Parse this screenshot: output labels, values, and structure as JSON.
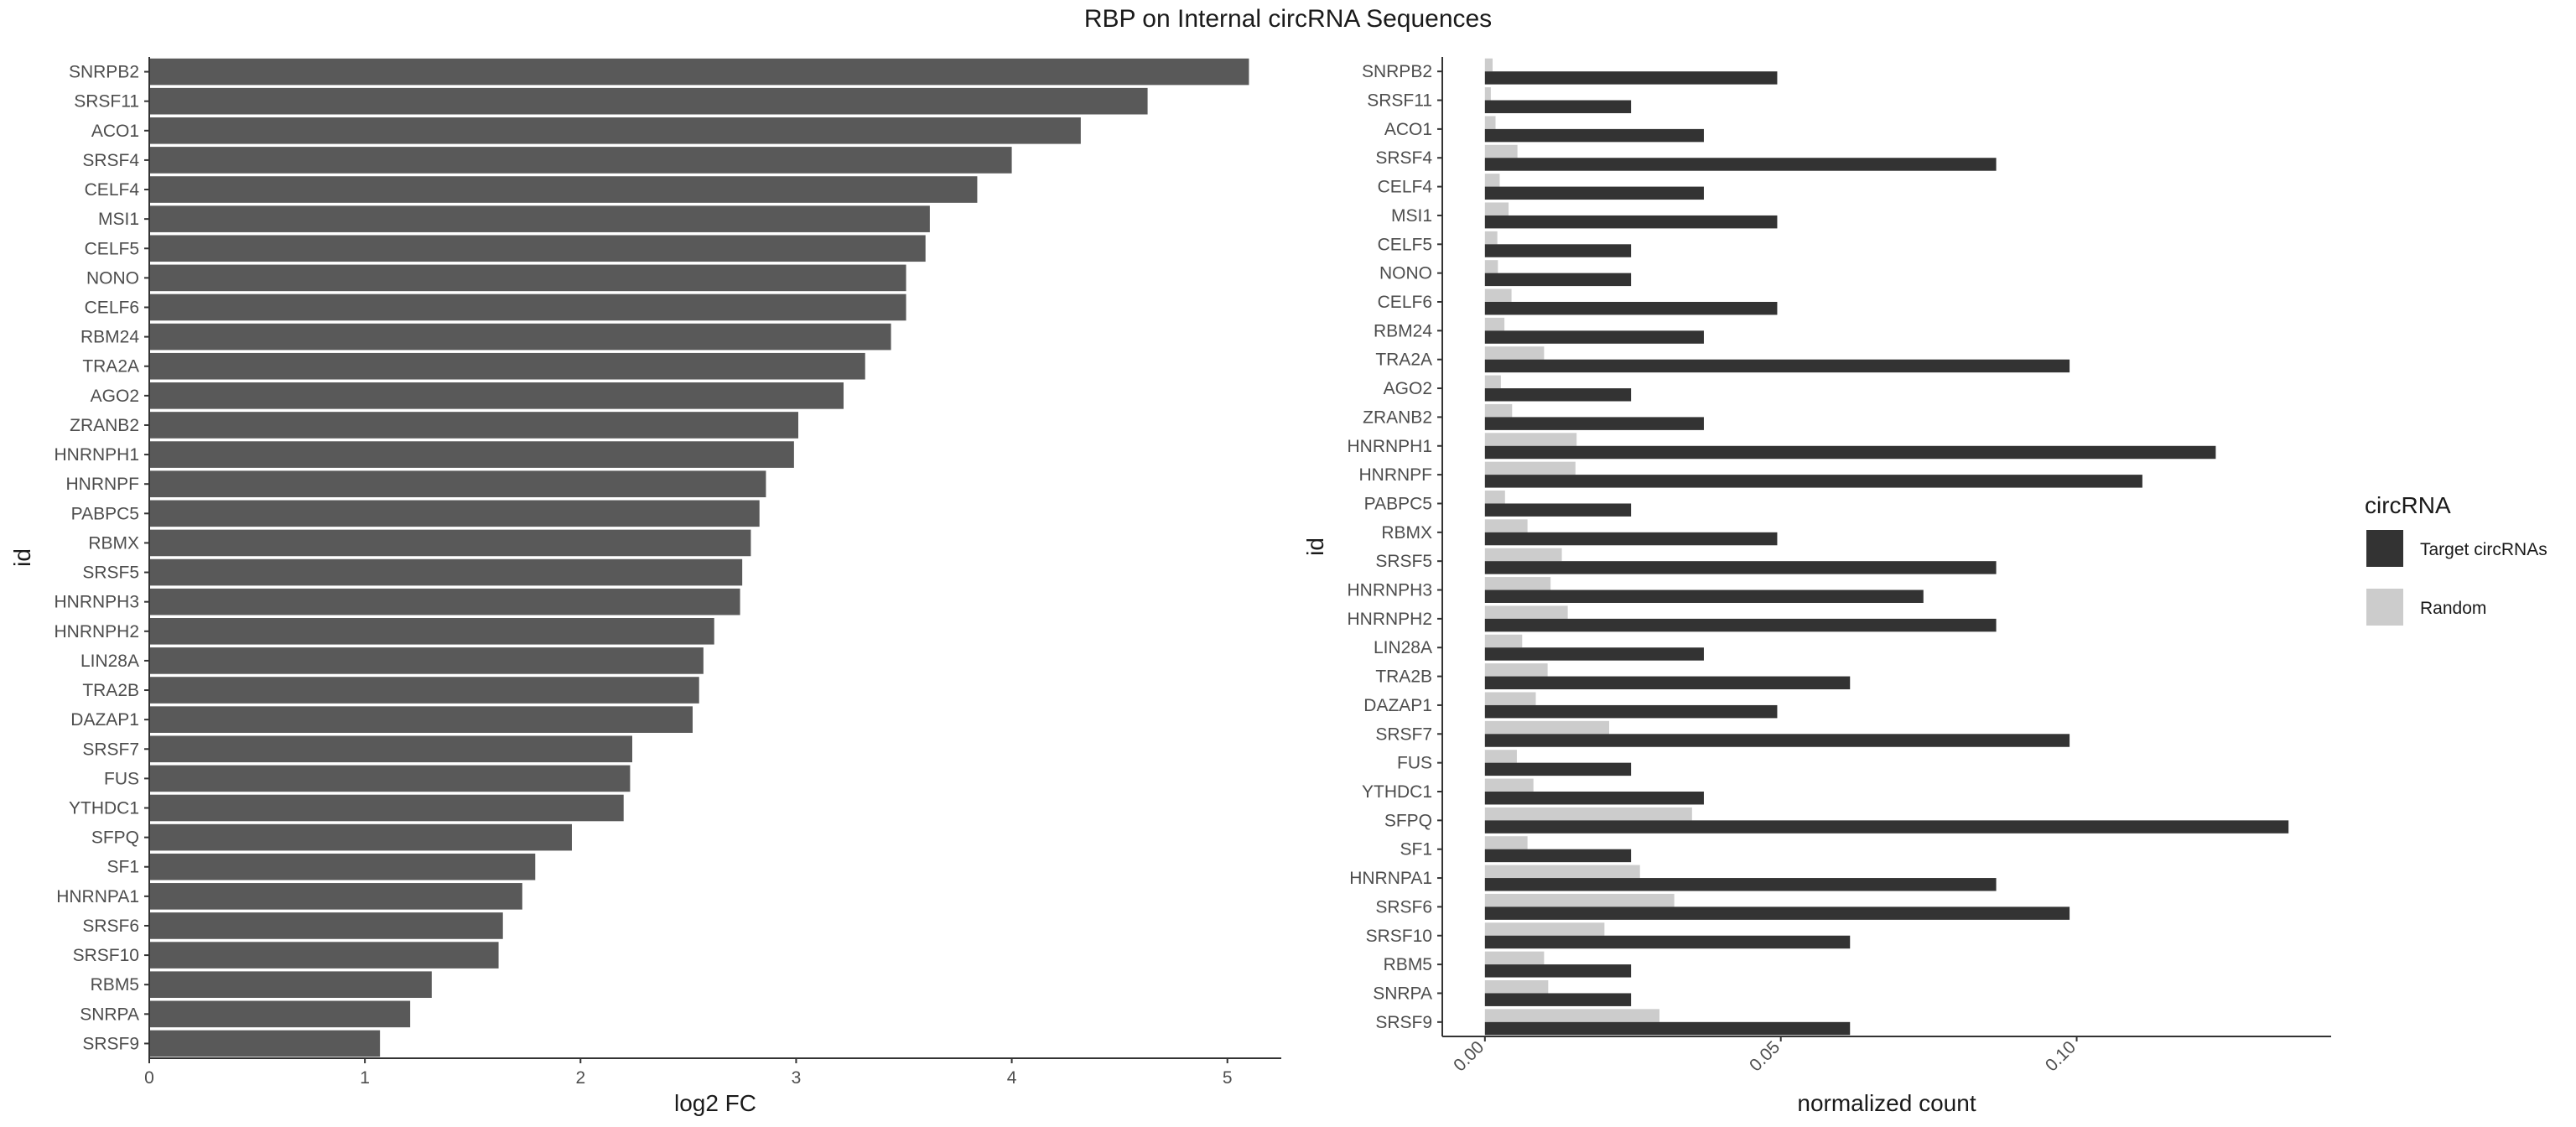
{
  "figure_title": "RBP on Internal circRNA Sequences",
  "colors": {
    "fc_bar": "#595959",
    "target": "#333333",
    "random": "#cccccc",
    "axis": "#333333",
    "tick_text": "#4d4d4d"
  },
  "chart_data": [
    {
      "type": "bar",
      "orientation": "horizontal",
      "xlabel": "log2 FC",
      "ylabel": "id",
      "xlim": [
        0,
        5.25
      ],
      "xticks": [
        0,
        1,
        2,
        3,
        4,
        5
      ],
      "categories": [
        "SNRPB2",
        "SRSF11",
        "ACO1",
        "SRSF4",
        "CELF4",
        "MSI1",
        "CELF5",
        "NONO",
        "CELF6",
        "RBM24",
        "TRA2A",
        "AGO2",
        "ZRANB2",
        "HNRNPH1",
        "HNRNPF",
        "PABPC5",
        "RBMX",
        "SRSF5",
        "HNRNPH3",
        "HNRNPH2",
        "LIN28A",
        "TRA2B",
        "DAZAP1",
        "SRSF7",
        "FUS",
        "YTHDC1",
        "SFPQ",
        "SF1",
        "HNRNPA1",
        "SRSF6",
        "SRSF10",
        "RBM5",
        "SNRPA",
        "SRSF9"
      ],
      "values": [
        5.1,
        4.63,
        4.32,
        4.0,
        3.84,
        3.62,
        3.6,
        3.51,
        3.51,
        3.44,
        3.32,
        3.22,
        3.01,
        2.99,
        2.86,
        2.83,
        2.79,
        2.75,
        2.74,
        2.62,
        2.57,
        2.55,
        2.52,
        2.24,
        2.23,
        2.2,
        1.96,
        1.79,
        1.73,
        1.64,
        1.62,
        1.31,
        1.21,
        1.07
      ]
    },
    {
      "type": "bar",
      "orientation": "horizontal",
      "grouped": true,
      "xlabel": "normalized count",
      "ylabel": "id",
      "xlim": [
        -0.0072,
        0.143
      ],
      "xticks": [
        0.0,
        0.05,
        0.1
      ],
      "xtick_labels": [
        "0.00",
        "0.05",
        "0.10"
      ],
      "categories": [
        "SNRPB2",
        "SRSF11",
        "ACO1",
        "SRSF4",
        "CELF4",
        "MSI1",
        "CELF5",
        "NONO",
        "CELF6",
        "RBM24",
        "TRA2A",
        "AGO2",
        "ZRANB2",
        "HNRNPH1",
        "HNRNPF",
        "PABPC5",
        "RBMX",
        "SRSF5",
        "HNRNPH3",
        "HNRNPH2",
        "LIN28A",
        "TRA2B",
        "DAZAP1",
        "SRSF7",
        "FUS",
        "YTHDC1",
        "SFPQ",
        "SF1",
        "HNRNPA1",
        "SRSF6",
        "SRSF10",
        "RBM5",
        "SNRPA",
        "SRSF9"
      ],
      "series": [
        {
          "name": "Target circRNAs",
          "values": [
            0.0494,
            0.0247,
            0.037,
            0.0864,
            0.037,
            0.0494,
            0.0247,
            0.0247,
            0.0494,
            0.037,
            0.0988,
            0.0247,
            0.037,
            0.1235,
            0.1111,
            0.0247,
            0.0494,
            0.0864,
            0.0741,
            0.0864,
            0.037,
            0.0617,
            0.0494,
            0.0988,
            0.0247,
            0.037,
            0.1358,
            0.0247,
            0.0864,
            0.0988,
            0.0617,
            0.0247,
            0.0247,
            0.0617
          ]
        },
        {
          "name": "Random",
          "values": [
            0.0013,
            0.001,
            0.0018,
            0.0055,
            0.0025,
            0.004,
            0.0021,
            0.0022,
            0.0045,
            0.0033,
            0.01,
            0.0027,
            0.0046,
            0.0155,
            0.0153,
            0.0034,
            0.0072,
            0.013,
            0.0111,
            0.014,
            0.0063,
            0.0106,
            0.0086,
            0.021,
            0.0054,
            0.0082,
            0.035,
            0.0072,
            0.0262,
            0.032,
            0.0202,
            0.01,
            0.0107,
            0.0295
          ]
        }
      ],
      "legend": {
        "title": "circRNA",
        "position": "right",
        "entries": [
          "Target circRNAs",
          "Random"
        ]
      }
    }
  ]
}
